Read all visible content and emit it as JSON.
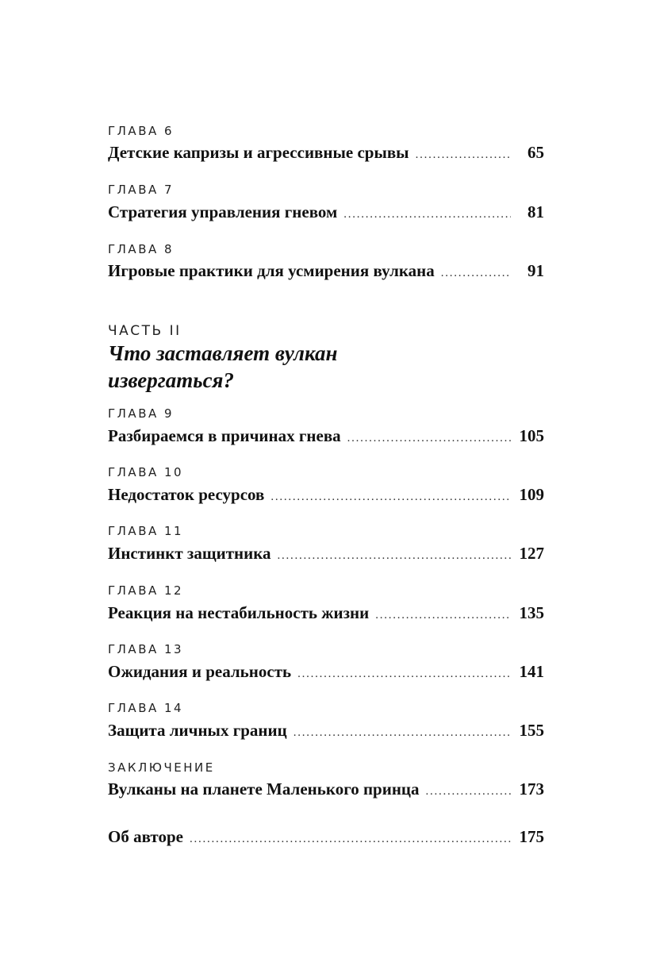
{
  "chapters_top": [
    {
      "label": "ГЛАВА 6",
      "title": "Детские капризы и агрессивные срывы",
      "page": "65"
    },
    {
      "label": "ГЛАВА 7",
      "title": "Стратегия управления гневом",
      "page": "81"
    },
    {
      "label": "ГЛАВА 8",
      "title": "Игровые практики для усмирения вулкана",
      "page": "91"
    }
  ],
  "part": {
    "label": "ЧАСТЬ II",
    "title_line1": "Что заставляет вулкан",
    "title_line2": "извергаться?"
  },
  "chapters_bottom": [
    {
      "label": "ГЛАВА 9",
      "title": "Разбираемся в причинах гнева",
      "page": "105"
    },
    {
      "label": "ГЛАВА 10",
      "title": "Недостаток ресурсов",
      "page": "109"
    },
    {
      "label": "ГЛАВА 11",
      "title": "Инстинкт защитника",
      "page": "127"
    },
    {
      "label": "ГЛАВА 12",
      "title": "Реакция на нестабильность жизни",
      "page": "135"
    },
    {
      "label": "ГЛАВА 13",
      "title": "Ожидания и реальность",
      "page": "141"
    },
    {
      "label": "ГЛАВА 14",
      "title": "Защита личных границ",
      "page": "155"
    },
    {
      "label": "ЗАКЛЮЧЕНИЕ",
      "title": "Вулканы на планете Маленького принца",
      "page": "173"
    }
  ],
  "about": {
    "title": "Об авторе",
    "page": "175"
  }
}
